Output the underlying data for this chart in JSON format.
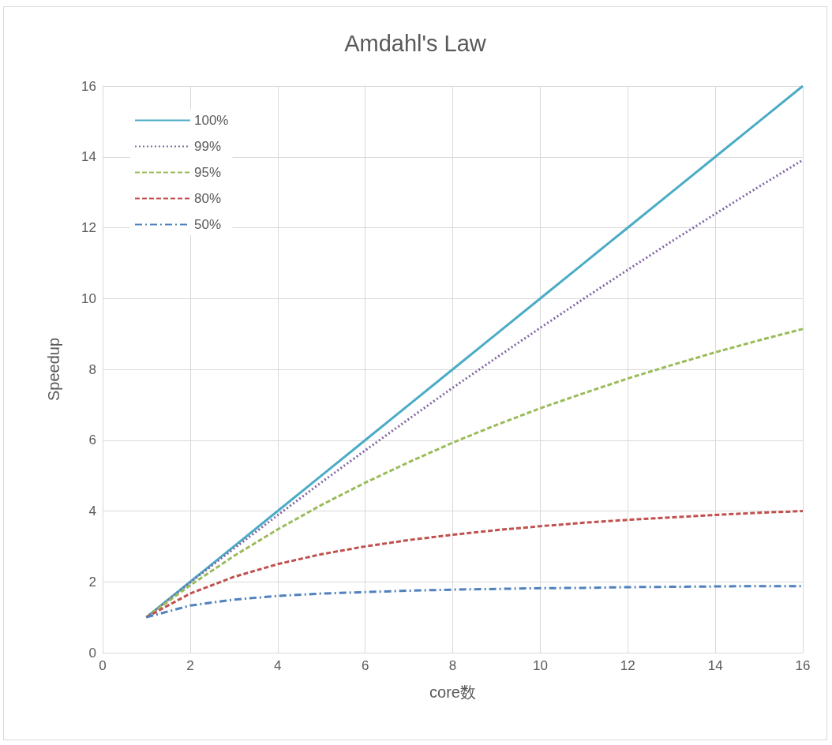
{
  "chart_data": {
    "type": "line",
    "title": "Amdahl's Law",
    "xlabel": "core数",
    "ylabel": "Speedup",
    "x": [
      1,
      2,
      3,
      4,
      5,
      6,
      7,
      8,
      9,
      10,
      11,
      12,
      13,
      14,
      15,
      16
    ],
    "series": [
      {
        "name": "100%",
        "color": "#4bacc6",
        "line_style": "solid",
        "values": [
          1,
          2,
          3,
          4,
          5,
          6,
          7,
          8,
          9,
          10,
          11,
          12,
          13,
          14,
          15,
          16
        ]
      },
      {
        "name": "99%",
        "color": "#8064a2",
        "line_style": "dotted",
        "values": [
          1,
          1.98,
          2.94,
          3.88,
          4.81,
          5.71,
          6.6,
          7.48,
          8.33,
          9.17,
          10,
          10.81,
          11.61,
          12.39,
          13.16,
          13.91
        ]
      },
      {
        "name": "95%",
        "color": "#9bbb59",
        "line_style": "dashed",
        "values": [
          1,
          1.9,
          2.73,
          3.48,
          4.17,
          4.8,
          5.38,
          5.93,
          6.43,
          6.9,
          7.33,
          7.74,
          8.12,
          8.48,
          8.82,
          9.14
        ]
      },
      {
        "name": "80%",
        "color": "#c0504d",
        "line_style": "dashed",
        "values": [
          1,
          1.67,
          2.14,
          2.5,
          2.78,
          3,
          3.18,
          3.33,
          3.46,
          3.57,
          3.67,
          3.75,
          3.82,
          3.89,
          3.95,
          4
        ]
      },
      {
        "name": "50%",
        "color": "#4f81bd",
        "line_style": "dashdot",
        "values": [
          1,
          1.33,
          1.5,
          1.6,
          1.67,
          1.71,
          1.75,
          1.78,
          1.8,
          1.82,
          1.83,
          1.85,
          1.86,
          1.87,
          1.88,
          1.88
        ]
      }
    ],
    "xlim": [
      0,
      16
    ],
    "xticks": [
      0,
      2,
      4,
      6,
      8,
      10,
      12,
      14,
      16
    ],
    "ylim": [
      0,
      16
    ],
    "yticks": [
      0,
      2,
      4,
      6,
      8,
      10,
      12,
      14,
      16
    ],
    "grid": true,
    "legend": "top left",
    "marker": "none"
  }
}
